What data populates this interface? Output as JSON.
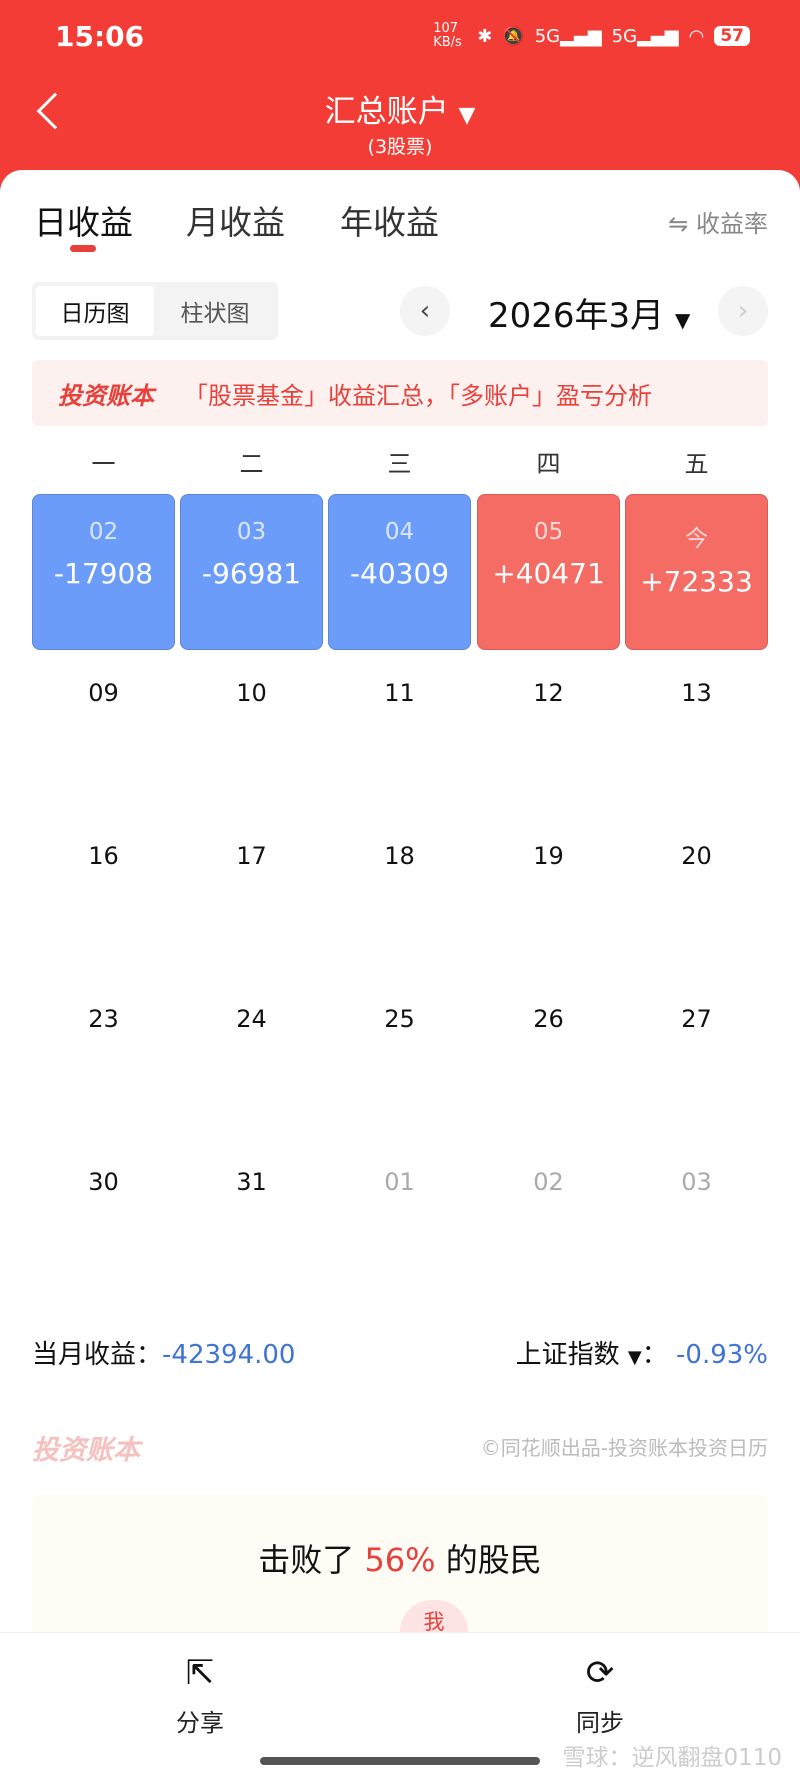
{
  "status": {
    "time": "15:06",
    "speed": "107 KB/s",
    "battery": "57"
  },
  "header": {
    "title": "汇总账户",
    "subtitle": "(3股票)"
  },
  "tabs": [
    {
      "label": "日收益"
    },
    {
      "label": "月收益"
    },
    {
      "label": "年收益"
    }
  ],
  "rate_toggle": "⇋ 收益率",
  "view": {
    "calendar": "日历图",
    "bar": "柱状图"
  },
  "month": "2026年3月",
  "banner": {
    "logo": "投资账本",
    "text": "「股票基金」收益汇总，「多账户」盈亏分析"
  },
  "weekdays": [
    "一",
    "二",
    "三",
    "四",
    "五"
  ],
  "trading_days": [
    {
      "date": "02",
      "value": "-17908",
      "sign": "neg"
    },
    {
      "date": "03",
      "value": "-96981",
      "sign": "neg"
    },
    {
      "date": "04",
      "value": "-40309",
      "sign": "neg"
    },
    {
      "date": "05",
      "value": "+40471",
      "sign": "pos"
    },
    {
      "date": "今",
      "value": "+72333",
      "sign": "pos"
    }
  ],
  "days": [
    [
      "09",
      "10",
      "11",
      "12",
      "13"
    ],
    [
      "16",
      "17",
      "18",
      "19",
      "20"
    ],
    [
      "23",
      "24",
      "25",
      "26",
      "27"
    ],
    [
      "30",
      "31",
      "01",
      "02",
      "03"
    ]
  ],
  "summary": {
    "label": "当月收益：",
    "value": "-42394.00",
    "index_label": "上证指数",
    "index_value": "-0.93%"
  },
  "footer": {
    "logo": "投资账本",
    "copyright": "©同花顺出品-投资账本投资日历"
  },
  "beat": {
    "prefix": "击败了",
    "pct": "56%",
    "suffix": "的股民",
    "me": "我"
  },
  "actions": {
    "share": "分享",
    "sync": "同步"
  },
  "watermark": "雪球：逆风翻盘0110",
  "colors": {
    "header": "#f33c35",
    "loss": "#6b9cf9",
    "gain": "#f46c64"
  }
}
